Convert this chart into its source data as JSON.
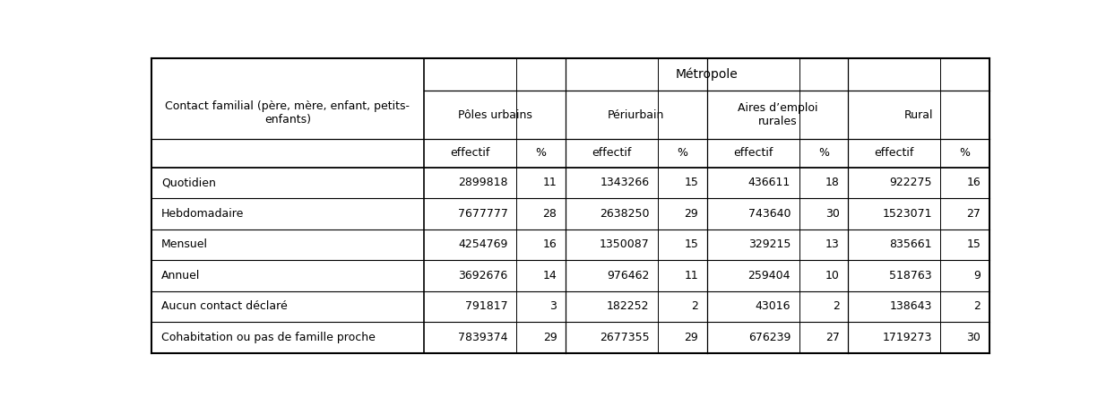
{
  "title": "Métropole",
  "rows": [
    [
      "Quotidien",
      "2899818",
      "11",
      "1343266",
      "15",
      "436611",
      "18",
      "922275",
      "16"
    ],
    [
      "Hebdomadaire",
      "7677777",
      "28",
      "2638250",
      "29",
      "743640",
      "30",
      "1523071",
      "27"
    ],
    [
      "Mensuel",
      "4254769",
      "16",
      "1350087",
      "15",
      "329215",
      "13",
      "835661",
      "15"
    ],
    [
      "Annuel",
      "3692676",
      "14",
      "976462",
      "11",
      "259404",
      "10",
      "518763",
      "9"
    ],
    [
      "Aucun contact déclaré",
      "791817",
      "3",
      "182252",
      "2",
      "43016",
      "2",
      "138643",
      "2"
    ],
    [
      "Cohabitation ou pas de famille proche",
      "7839374",
      "29",
      "2677355",
      "29",
      "676239",
      "27",
      "1719273",
      "30"
    ]
  ],
  "contact_label": "Contact familial (père, mère, enfant, petits-\nenfants)",
  "group_headers": [
    "Pôles urbains",
    "Périurbain",
    "Aires d’emploi\nrurales",
    "Rural"
  ],
  "sub_headers": [
    "effectif",
    "%",
    "effectif",
    "%",
    "effectif",
    "%",
    "effectif",
    "%"
  ],
  "background_color": "#ffffff",
  "line_color": "#000000",
  "text_color": "#000000",
  "font_size": 9
}
